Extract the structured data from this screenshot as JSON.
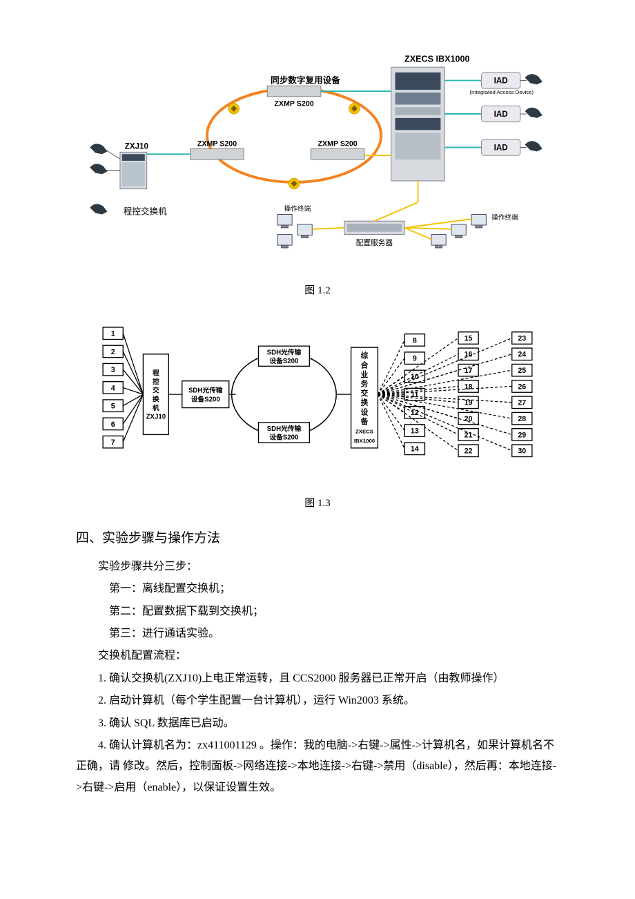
{
  "fig12": {
    "caption": "图 1.2",
    "labels": {
      "title_top": "ZXECS IBX1000",
      "sdh_title": "同步数字复用设备",
      "zxmp_top": "ZXMP S200",
      "zxmp_left": "ZXMP S200",
      "zxmp_right": "ZXMP S200",
      "zxj10": "ZXJ10",
      "pbx": "程控交换机",
      "iad_note": "(Integrated Access Device)",
      "iad": "IAD",
      "op_term_l": "操作终端",
      "op_term_r": "操作终端",
      "cfg_server": "配置服务器"
    },
    "colors": {
      "ring": "#f58220",
      "ring_arrow": "#f2c200",
      "device_fill": "#cfd3d6",
      "device_stroke": "#7a7f85",
      "server_dark": "#3b4a5a",
      "server_mid": "#6e7e8e",
      "teal_line": "#2ab5b5",
      "yellow_line": "#f2c200",
      "iad_fill": "#e9e9ef",
      "phone": "#2d3a44"
    }
  },
  "fig13": {
    "caption": "图 1.3",
    "left_numbers": [
      "1",
      "2",
      "3",
      "4",
      "5",
      "6",
      "7"
    ],
    "right_col1": [
      "8",
      "9",
      "10",
      "11",
      "12",
      "13",
      "14"
    ],
    "right_col2": [
      "15",
      "16",
      "17",
      "18",
      "19",
      "20",
      "21",
      "22"
    ],
    "right_col3": [
      "23",
      "24",
      "25",
      "26",
      "27",
      "28",
      "29",
      "30"
    ],
    "labels": {
      "pbx": "程控交换机ZXJ10",
      "sdh_left": "SDH光传输设备S200",
      "sdh_top": "SDH光传输设备S200",
      "sdh_bottom": "SDH光传输设备S200",
      "ibx": "综合业务交换设备ZXECS IBX1000"
    },
    "colors": {
      "stroke": "#000000",
      "dash": "#000000"
    }
  },
  "text": {
    "section_title": "四、实验步骤与操作方法",
    "intro": "实验步骤共分三步：",
    "step1": "第一：离线配置交换机；",
    "step2": "第二：配置数据下载到交换机；",
    "step3": "第三：进行通话实验。",
    "flow_title": "交换机配置流程：",
    "p1": "1. 确认交换机(ZXJ10)上电正常运转，且 CCS2000 服务器已正常开启（由教师操作）",
    "p2": "2. 启动计算机（每个学生配置一台计算机），运行 Win2003 系统。",
    "p3": "3. 确认 SQL 数据库已启动。",
    "p4": "4. 确认计算机名为：zx411001129 。操作：我的电脑->右键->属性->计算机名，如果计算机名不正确，请 修改。然后，控制面板->网络连接->本地连接->右键->禁用（disable），然后再：本地连接->右键->启用（enable），以保证设置生效。"
  }
}
